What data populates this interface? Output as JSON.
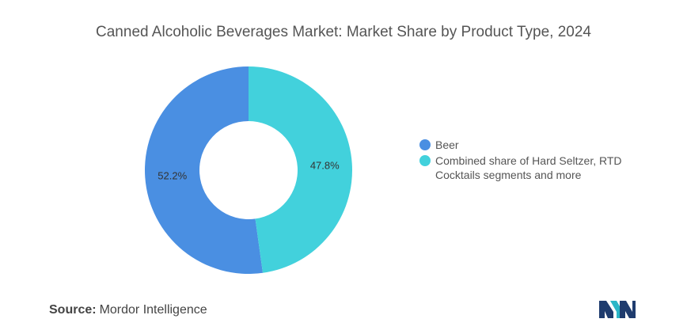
{
  "chart_data": {
    "type": "pie",
    "style": "donut",
    "title": "Canned Alcoholic Beverages Market: Market Share by Product Type, 2024",
    "slices": [
      {
        "name": "Beer",
        "value": 52.2,
        "label": "52.2%",
        "color": "#4A8FE2"
      },
      {
        "name": "Combined share of Hard Seltzer, RTD Cocktails segments and more",
        "value": 47.8,
        "label": "47.8%",
        "color": "#42D1DC"
      }
    ],
    "legend_position": "right"
  },
  "source": {
    "label": "Source:",
    "text": "Mordor Intelligence"
  },
  "logo": {
    "icon": "mordor-intelligence-logo-icon",
    "colors": [
      "#1F3C6E",
      "#2BB6C7"
    ]
  }
}
